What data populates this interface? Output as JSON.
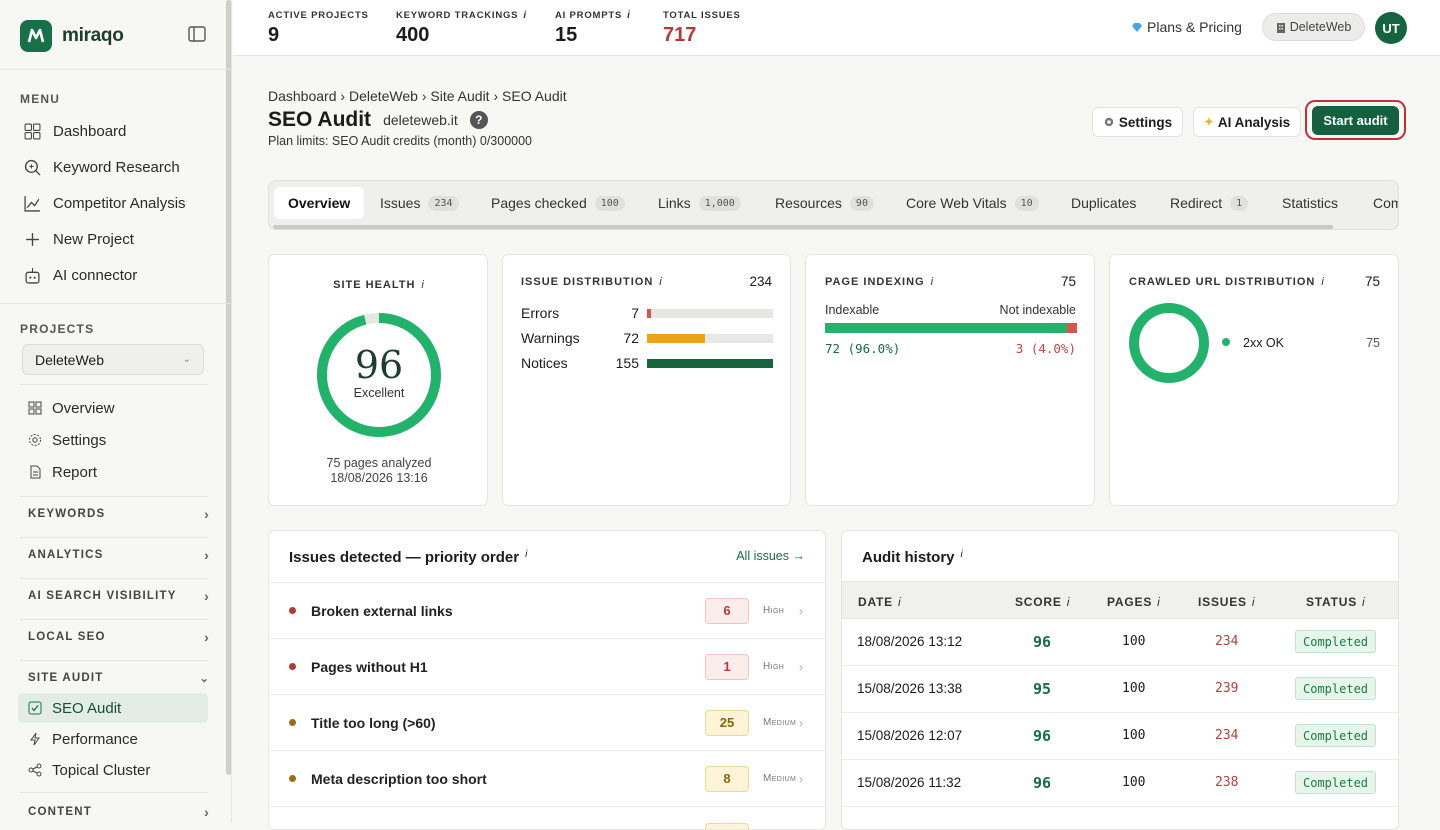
{
  "app": {
    "name": "miraqo"
  },
  "sidebar": {
    "menu_label": "MENU",
    "menu": [
      {
        "label": "Dashboard",
        "icon": "grid-icon"
      },
      {
        "label": "Keyword Research",
        "icon": "search-icon"
      },
      {
        "label": "Competitor Analysis",
        "icon": "chart-icon"
      },
      {
        "label": "New Project",
        "icon": "plus-icon"
      },
      {
        "label": "AI connector",
        "icon": "robot-icon"
      }
    ],
    "projects_label": "PROJECTS",
    "project_selected": "DeleteWeb",
    "project_items": [
      {
        "label": "Overview",
        "icon": "grid-icon"
      },
      {
        "label": "Settings",
        "icon": "gear-icon"
      },
      {
        "label": "Report",
        "icon": "document-icon"
      }
    ],
    "groups": [
      "KEYWORDS",
      "ANALYTICS",
      "AI SEARCH VISIBILITY",
      "LOCAL SEO",
      "SITE AUDIT"
    ],
    "site_audit_items": [
      {
        "label": "SEO Audit",
        "icon": "checkbox-icon"
      },
      {
        "label": "Performance",
        "icon": "bolt-icon"
      },
      {
        "label": "Topical Cluster",
        "icon": "share-icon"
      }
    ],
    "content_group": "CONTENT"
  },
  "topbar": {
    "stats": [
      {
        "label": "ACTIVE PROJECTS",
        "value": "9",
        "info": ""
      },
      {
        "label": "KEYWORD TRACKINGS",
        "value": "400",
        "info": "i"
      },
      {
        "label": "AI PROMPTS",
        "value": "15",
        "info": "i"
      },
      {
        "label": "TOTAL ISSUES",
        "value": "717",
        "info": ""
      }
    ],
    "plans_label": "Plans & Pricing",
    "project_chip": "DeleteWeb",
    "avatar": "UT"
  },
  "page": {
    "breadcrumb": [
      "Dashboard",
      "DeleteWeb",
      "Site Audit",
      "SEO Audit"
    ],
    "title": "SEO Audit",
    "domain": "deleteweb.it",
    "help": "?",
    "limits": "Plan limits: SEO Audit credits (month) 0/300000",
    "buttons": {
      "settings": "Settings",
      "ai": "AI Analysis",
      "start": "Start audit"
    }
  },
  "tabs": [
    {
      "label": "Overview",
      "badge": ""
    },
    {
      "label": "Issues",
      "badge": "234"
    },
    {
      "label": "Pages checked",
      "badge": "100"
    },
    {
      "label": "Links",
      "badge": "1,000"
    },
    {
      "label": "Resources",
      "badge": "90"
    },
    {
      "label": "Core Web Vitals",
      "badge": "10"
    },
    {
      "label": "Duplicates",
      "badge": ""
    },
    {
      "label": "Redirect",
      "badge": "1"
    },
    {
      "label": "Statistics",
      "badge": ""
    },
    {
      "label": "Com",
      "badge": ""
    }
  ],
  "site_health": {
    "title": "SITE HEALTH",
    "score": "96",
    "score_fraction": 0.96,
    "rating": "Excellent",
    "pages_analyzed": "75 pages analyzed",
    "date": "18/08/2026 13:16"
  },
  "issue_distribution": {
    "title": "ISSUE DISTRIBUTION",
    "total": "234",
    "rows": [
      {
        "name": "Errors",
        "count": "7",
        "fraction": 0.03,
        "color": "#d9534f"
      },
      {
        "name": "Warnings",
        "count": "72",
        "fraction": 0.46,
        "color": "#eba31c"
      },
      {
        "name": "Notices",
        "count": "155",
        "fraction": 1.0,
        "color": "#15643f"
      }
    ]
  },
  "page_indexing": {
    "title": "PAGE INDEXING",
    "total": "75",
    "left_label": "Indexable",
    "right_label": "Not indexable",
    "left_value": "72 (96.0%)",
    "right_value": "3 (4.0%)",
    "fraction": 0.96
  },
  "crawled": {
    "title": "CRAWLED URL DISTRIBUTION",
    "total": "75",
    "legend": [
      {
        "label": "2xx OK",
        "value": "75",
        "color": "#23b26b"
      }
    ]
  },
  "issues_detected": {
    "title": "Issues detected — priority order",
    "link": "All issues →",
    "rows": [
      {
        "name": "Broken external links",
        "count": "6",
        "severity": "High"
      },
      {
        "name": "Pages without H1",
        "count": "1",
        "severity": "High"
      },
      {
        "name": "Title too long (>60)",
        "count": "25",
        "severity": "Medium"
      },
      {
        "name": "Meta description too short",
        "count": "8",
        "severity": "Medium"
      }
    ]
  },
  "audit_history": {
    "title": "Audit history",
    "columns": [
      "DATE",
      "SCORE",
      "PAGES",
      "ISSUES",
      "STATUS"
    ],
    "rows": [
      {
        "date": "18/08/2026 13:12",
        "score": "96",
        "pages": "100",
        "issues": "234",
        "status": "Completed"
      },
      {
        "date": "15/08/2026 13:38",
        "score": "95",
        "pages": "100",
        "issues": "239",
        "status": "Completed"
      },
      {
        "date": "15/08/2026 12:07",
        "score": "96",
        "pages": "100",
        "issues": "234",
        "status": "Completed"
      },
      {
        "date": "15/08/2026 11:32",
        "score": "96",
        "pages": "100",
        "issues": "238",
        "status": "Completed"
      }
    ]
  },
  "colors": {
    "brand": "#15643f",
    "accent_ring": "#23b26b",
    "error": "#d9534f",
    "warning": "#eba31c",
    "highlight_border": "#c42f36"
  }
}
